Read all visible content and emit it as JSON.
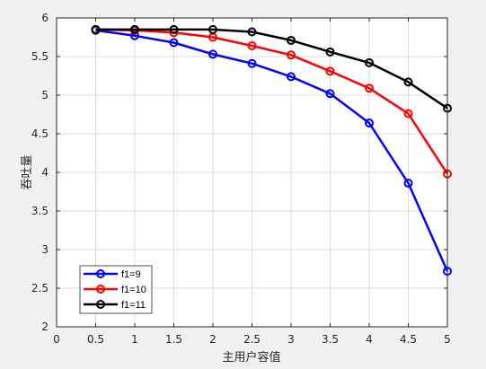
{
  "chart_data": {
    "type": "line",
    "title": "",
    "xlabel": "主用户容值",
    "ylabel": "吞吐量",
    "xlim": [
      0,
      5
    ],
    "ylim": [
      2,
      6
    ],
    "xticks": [
      "0",
      "0.5",
      "1",
      "1.5",
      "2",
      "2.5",
      "3",
      "3.5",
      "4",
      "4.5",
      "5"
    ],
    "yticks": [
      "2",
      "2.5",
      "3",
      "3.5",
      "4",
      "4.5",
      "5",
      "5.5",
      "6"
    ],
    "grid": true,
    "legend_position": "bottom-left",
    "x": [
      0.5,
      1,
      1.5,
      2,
      2.5,
      3,
      3.5,
      4,
      4.5,
      5
    ],
    "series": [
      {
        "name": "f1=9",
        "color": "#0000ff",
        "marker": "circle",
        "values": [
          5.84,
          5.77,
          5.68,
          5.53,
          5.41,
          5.24,
          5.02,
          4.64,
          3.86,
          2.72
        ]
      },
      {
        "name": "f1=10",
        "color": "#ff0000",
        "marker": "circle",
        "values": [
          5.85,
          5.84,
          5.81,
          5.75,
          5.64,
          5.52,
          5.31,
          5.09,
          4.76,
          3.98
        ]
      },
      {
        "name": "f1=11",
        "color": "#000000",
        "marker": "circle",
        "values": [
          5.85,
          5.85,
          5.85,
          5.85,
          5.82,
          5.71,
          5.56,
          5.42,
          5.17,
          4.83
        ]
      }
    ]
  }
}
